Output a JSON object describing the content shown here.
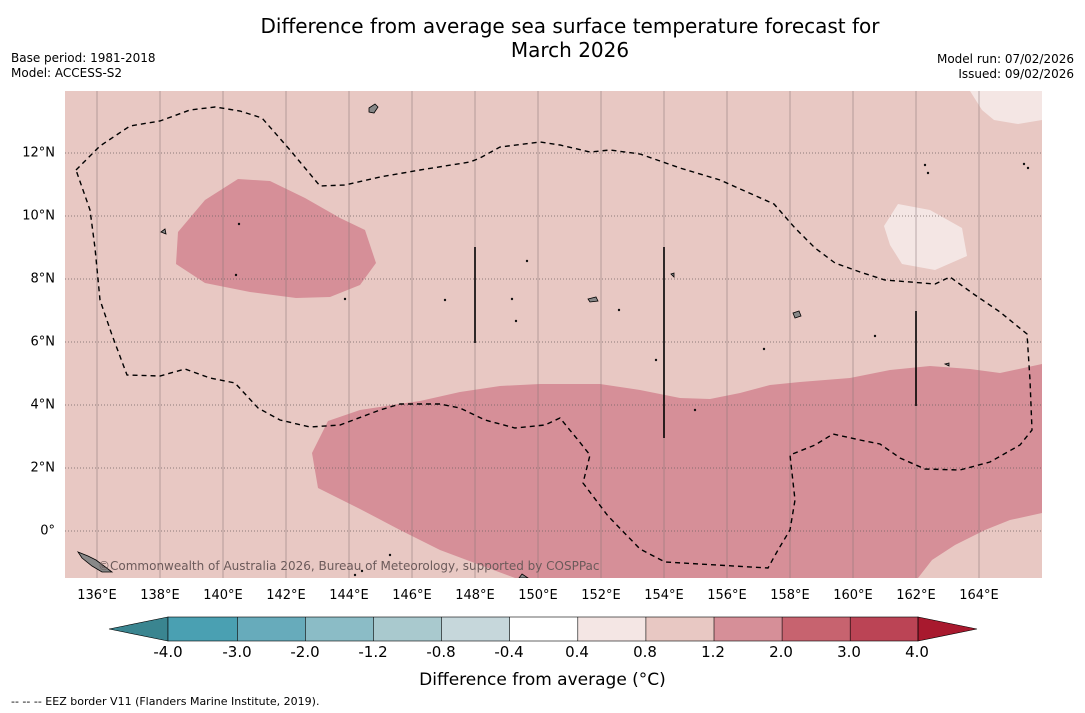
{
  "title_line1": "Difference from average sea surface temperature forecast for",
  "title_line2": "March 2026",
  "base_period": "Base period: 1981-2018",
  "model": "Model: ACCESS-S2",
  "model_run": "Model run: 07/02/2026",
  "issued": "Issued: 09/02/2026",
  "copyright": "©Commonwealth of Australia 2026, Bureau of Meteorology, supported by COSPPac",
  "longitude_labels": [
    "136°E",
    "138°E",
    "140°E",
    "142°E",
    "144°E",
    "146°E",
    "148°E",
    "150°E",
    "152°E",
    "154°E",
    "156°E",
    "158°E",
    "160°E",
    "162°E",
    "164°E"
  ],
  "latitude_labels": [
    "12°N",
    "10°N",
    "8°N",
    "6°N",
    "4°N",
    "2°N",
    "0°"
  ],
  "colorbar": {
    "label": "Difference from average (°C)",
    "ticks": [
      "-4.0",
      "-3.0",
      "-2.0",
      "-1.2",
      "-0.8",
      "-0.4",
      "0.4",
      "0.8",
      "1.2",
      "2.0",
      "3.0",
      "4.0"
    ],
    "colors": [
      "#4aa0b2",
      "#67abbb",
      "#8bbcc6",
      "#a9c9ce",
      "#c6d7db",
      "#ffffff",
      "#f4e6e4",
      "#e8c8c3",
      "#d68f98",
      "#c7636f",
      "#bb4455"
    ],
    "under_color": "#3a8590",
    "over_color": "#a8192e"
  },
  "colors": {
    "shade_0_8_1_2": "#e8c8c3",
    "shade_1_2_2_0": "#d68f98",
    "shade_0_4_0_8": "#f4e6e4"
  },
  "footnote": "--  --  -- EEZ border V11 (Flanders Marine Institute, 2019)."
}
